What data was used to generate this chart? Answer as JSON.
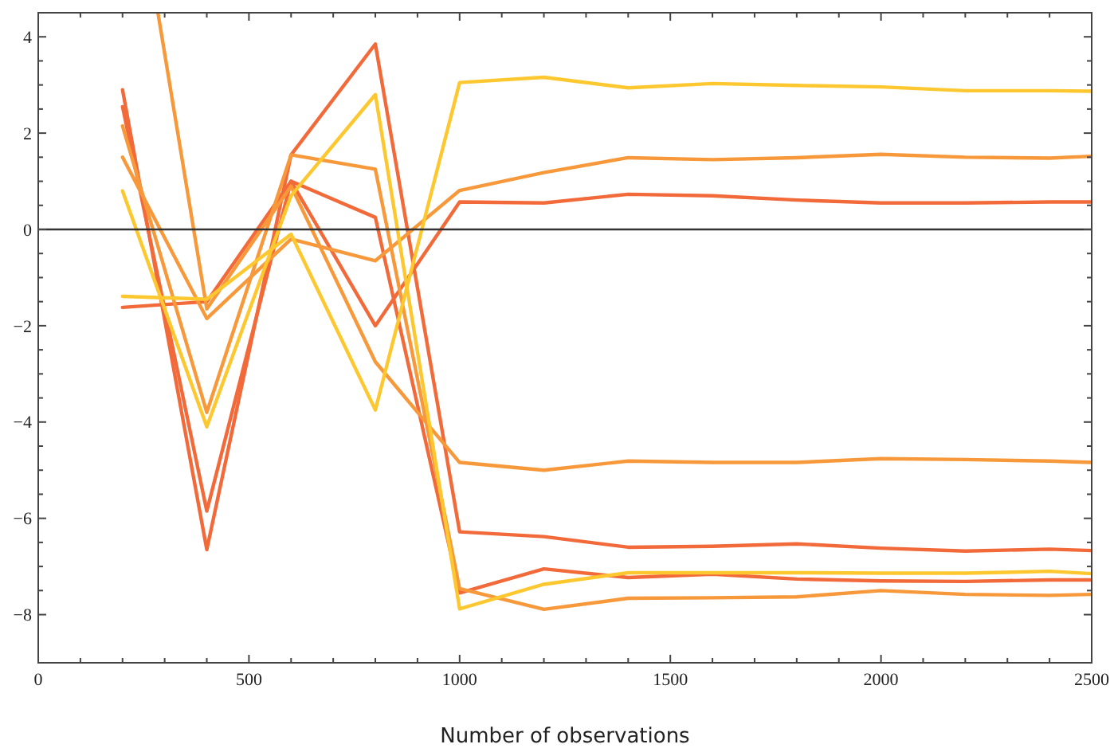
{
  "chart_data": {
    "type": "line",
    "xlabel": "Number of observations",
    "x": [
      200,
      400,
      600,
      800,
      1000,
      1200,
      1400,
      1600,
      1800,
      2000,
      2200,
      2400,
      2500
    ],
    "series": [
      {
        "color": "#f26a3a",
        "values": [
          2.9,
          -6.65,
          1.55,
          3.85,
          -6.28,
          -6.38,
          -6.6,
          -6.58,
          -6.53,
          -6.62,
          -6.68,
          -6.64,
          -6.67
        ]
      },
      {
        "color": "#f26a3a",
        "values": [
          2.55,
          -5.85,
          1.0,
          0.25,
          -7.55,
          -7.05,
          -7.23,
          -7.16,
          -7.26,
          -7.3,
          -7.31,
          -7.28,
          -7.28
        ]
      },
      {
        "color": "#f26a3a",
        "values": [
          -1.62,
          -1.5,
          1.0,
          -2.0,
          0.57,
          0.55,
          0.73,
          0.7,
          0.61,
          0.55,
          0.55,
          0.57,
          0.57
        ]
      },
      {
        "color": "#f7993a",
        "values": [
          1.5,
          -1.85,
          -0.2,
          -0.65,
          0.81,
          1.18,
          1.49,
          1.45,
          1.49,
          1.56,
          1.5,
          1.48,
          1.52
        ]
      },
      {
        "color": "#f7993a",
        "x": [
          284,
          400,
          600,
          800,
          1000,
          1200,
          1400,
          1600,
          1800,
          2000,
          2200,
          2400,
          2500
        ],
        "values": [
          4.5,
          -1.65,
          0.9,
          -2.75,
          -4.84,
          -5.0,
          -4.81,
          -4.84,
          -4.84,
          -4.76,
          -4.78,
          -4.81,
          -4.84
        ]
      },
      {
        "color": "#f7993a",
        "values": [
          2.15,
          -3.8,
          1.55,
          1.25,
          -7.46,
          -7.89,
          -7.66,
          -7.65,
          -7.63,
          -7.5,
          -7.58,
          -7.6,
          -7.58
        ]
      },
      {
        "color": "#fdc82f",
        "values": [
          -1.39,
          -1.45,
          -0.1,
          -3.75,
          3.05,
          3.16,
          2.94,
          3.03,
          2.99,
          2.96,
          2.88,
          2.88,
          2.87
        ]
      },
      {
        "color": "#fdc82f",
        "values": [
          0.8,
          -4.1,
          0.7,
          2.8,
          -7.88,
          -7.37,
          -7.13,
          -7.13,
          -7.13,
          -7.14,
          -7.14,
          -7.1,
          -7.15
        ]
      }
    ],
    "xlim": [
      0,
      2500
    ],
    "ylim": [
      -9,
      4.5
    ],
    "xticks": [
      0,
      {
        "value": 100,
        "label": null
      },
      {
        "value": 200,
        "label": null
      },
      {
        "value": 300,
        "label": null
      },
      {
        "value": 400,
        "label": null
      },
      500,
      {
        "value": 600,
        "label": null
      },
      {
        "value": 700,
        "label": null
      },
      {
        "value": 800,
        "label": null
      },
      {
        "value": 900,
        "label": null
      },
      1000,
      {
        "value": 1100,
        "label": null
      },
      {
        "value": 1200,
        "label": null
      },
      {
        "value": 1300,
        "label": null
      },
      {
        "value": 1400,
        "label": null
      },
      1500,
      {
        "value": 1600,
        "label": null
      },
      {
        "value": 1700,
        "label": null
      },
      {
        "value": 1800,
        "label": null
      },
      {
        "value": 1900,
        "label": null
      },
      2000,
      {
        "value": 2100,
        "label": null
      },
      {
        "value": 2200,
        "label": null
      },
      {
        "value": 2300,
        "label": null
      },
      {
        "value": 2400,
        "label": null
      },
      2500
    ],
    "yticks": [
      -8,
      {
        "value": -7.5,
        "label": null
      },
      {
        "value": -7,
        "label": null
      },
      {
        "value": -6.5,
        "label": null
      },
      -6,
      {
        "value": -5.5,
        "label": null
      },
      {
        "value": -5,
        "label": null
      },
      {
        "value": -4.5,
        "label": null
      },
      -4,
      {
        "value": -3.5,
        "label": null
      },
      {
        "value": -3,
        "label": null
      },
      {
        "value": -2.5,
        "label": null
      },
      -2,
      {
        "value": -1.5,
        "label": null
      },
      {
        "value": -1,
        "label": null
      },
      {
        "value": -0.5,
        "label": null
      },
      0,
      {
        "value": 0.5,
        "label": null
      },
      {
        "value": 1,
        "label": null
      },
      {
        "value": 1.5,
        "label": null
      },
      2,
      {
        "value": 2.5,
        "label": null
      },
      {
        "value": 3,
        "label": null
      },
      {
        "value": 3.5,
        "label": null
      },
      4
    ],
    "ref_lines": [
      {
        "axis": "y",
        "value": 0,
        "color": "#333333"
      }
    ],
    "grid": false,
    "marker": "none",
    "line_style": "solid"
  }
}
